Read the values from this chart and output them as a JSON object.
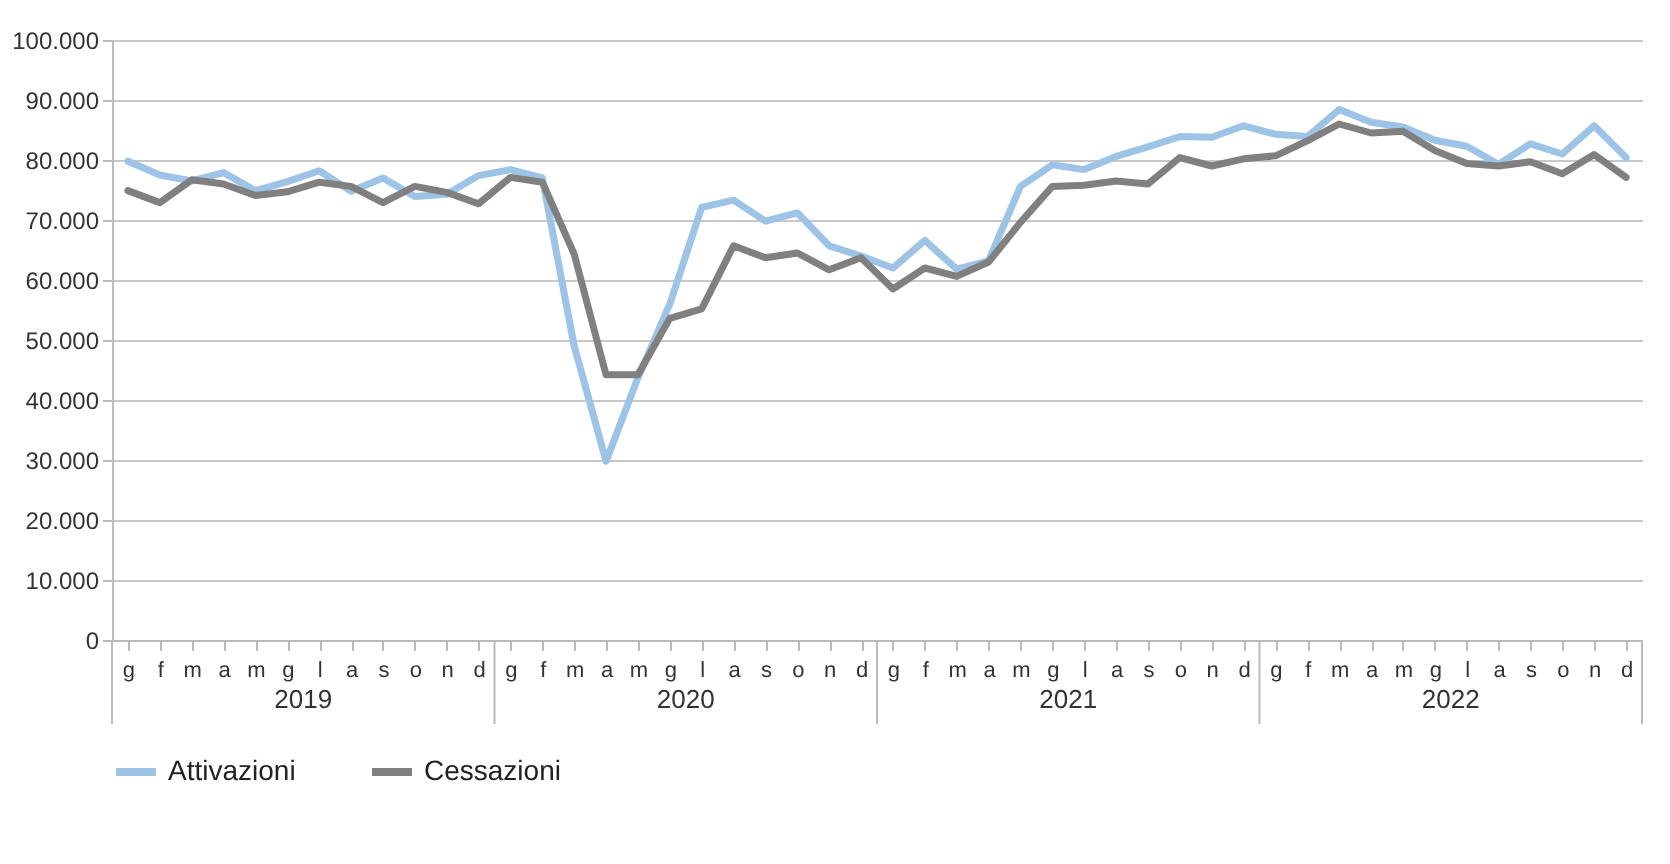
{
  "chart_data": {
    "type": "line",
    "categories": [
      "g",
      "f",
      "m",
      "a",
      "m",
      "g",
      "l",
      "a",
      "s",
      "o",
      "n",
      "d",
      "g",
      "f",
      "m",
      "a",
      "m",
      "g",
      "l",
      "a",
      "s",
      "o",
      "n",
      "d",
      "g",
      "f",
      "m",
      "a",
      "m",
      "g",
      "l",
      "a",
      "s",
      "o",
      "n",
      "d",
      "g",
      "f",
      "m",
      "a",
      "m",
      "g",
      "l",
      "a",
      "s",
      "o",
      "n",
      "d"
    ],
    "series": [
      {
        "name": "Attivazioni",
        "color": "#9dc3e6",
        "values": [
          79800,
          77500,
          76500,
          77900,
          74900,
          76400,
          78200,
          74800,
          77000,
          73900,
          74300,
          77400,
          78400,
          77000,
          49000,
          29800,
          43700,
          56000,
          72100,
          73300,
          69800,
          71200,
          65700,
          64000,
          62000,
          66600,
          61800,
          63200,
          75600,
          79200,
          78400,
          80600,
          82200,
          83900,
          83800,
          85700,
          84300,
          83900,
          88400,
          86300,
          85500,
          83300,
          82300,
          79300,
          82700,
          81000,
          85700,
          80400
        ]
      },
      {
        "name": "Cessazioni",
        "color": "#808080",
        "values": [
          74900,
          72900,
          76700,
          76000,
          74100,
          74700,
          76300,
          75600,
          72900,
          75600,
          74600,
          72700,
          77100,
          76300,
          64300,
          44200,
          44200,
          53600,
          55200,
          65700,
          63700,
          64500,
          61700,
          63700,
          58500,
          62000,
          60600,
          63000,
          69600,
          75600,
          75800,
          76500,
          76000,
          80400,
          79000,
          80200,
          80700,
          83200,
          86000,
          84500,
          84800,
          81600,
          79400,
          79000,
          79700,
          77700,
          80900,
          77100
        ]
      }
    ],
    "ylim": [
      0,
      100000
    ],
    "yticks": [
      0,
      {
        "value": 10000,
        "label": "10.000"
      },
      {
        "value": 20000,
        "label": "20.000"
      },
      {
        "value": 30000,
        "label": "30.000"
      },
      {
        "value": 40000,
        "label": "40.000"
      },
      {
        "value": 50000,
        "label": "50.000"
      },
      {
        "value": 60000,
        "label": "60.000"
      },
      {
        "value": 70000,
        "label": "70.000"
      },
      {
        "value": 80000,
        "label": "80.000"
      },
      {
        "value": 90000,
        "label": "90.000"
      },
      {
        "value": 100000,
        "label": "100.000"
      }
    ],
    "grid": "y",
    "legend": "bottom",
    "line_style": "solid",
    "marker": "none",
    "annotations": [
      "2019",
      "2020",
      "2021",
      "2022"
    ]
  }
}
